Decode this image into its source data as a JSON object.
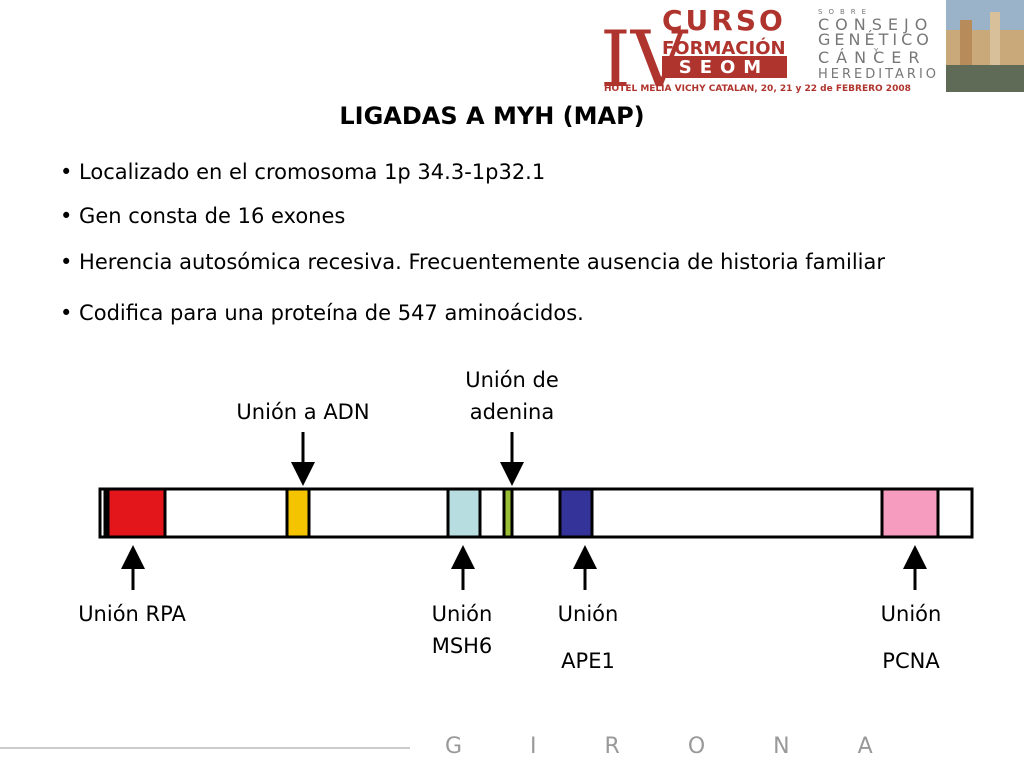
{
  "header": {
    "roman": "IV",
    "curso": "CURSO",
    "formacion": "FORMACIÓN",
    "seom": "SEOM",
    "venue": "HOTEL MELIA VICHY CATALAN, 20, 21 y 22 de FEBRERO 2008",
    "sobre": "SOBRE",
    "consejo": "CONSEJO",
    "genetico": "GENÉTICO",
    "y": "Y",
    "cancer": "CÁNCER",
    "hereditario": "HEREDITARIO"
  },
  "title": "LIGADAS A MYH (MAP)",
  "bullets": [
    "Localizado en el cromosoma 1p 34.3-1p32.1",
    "Gen consta de 16 exones",
    "Herencia autosómica recesiva. Frecuentemente ausencia de historia familiar",
    "Codifica para una proteína de 547  aminoácidos."
  ],
  "diagram": {
    "top_labels": [
      [
        "Unión a ADN"
      ],
      [
        "Unión de",
        "adenina"
      ]
    ],
    "bottom_labels": [
      [
        "Unión RPA"
      ],
      [
        "Unión",
        "MSH6"
      ],
      [
        "Unión",
        "APE1"
      ],
      [
        "Unión",
        "PCNA"
      ]
    ]
  },
  "footer": {
    "city": "GIRONA"
  }
}
